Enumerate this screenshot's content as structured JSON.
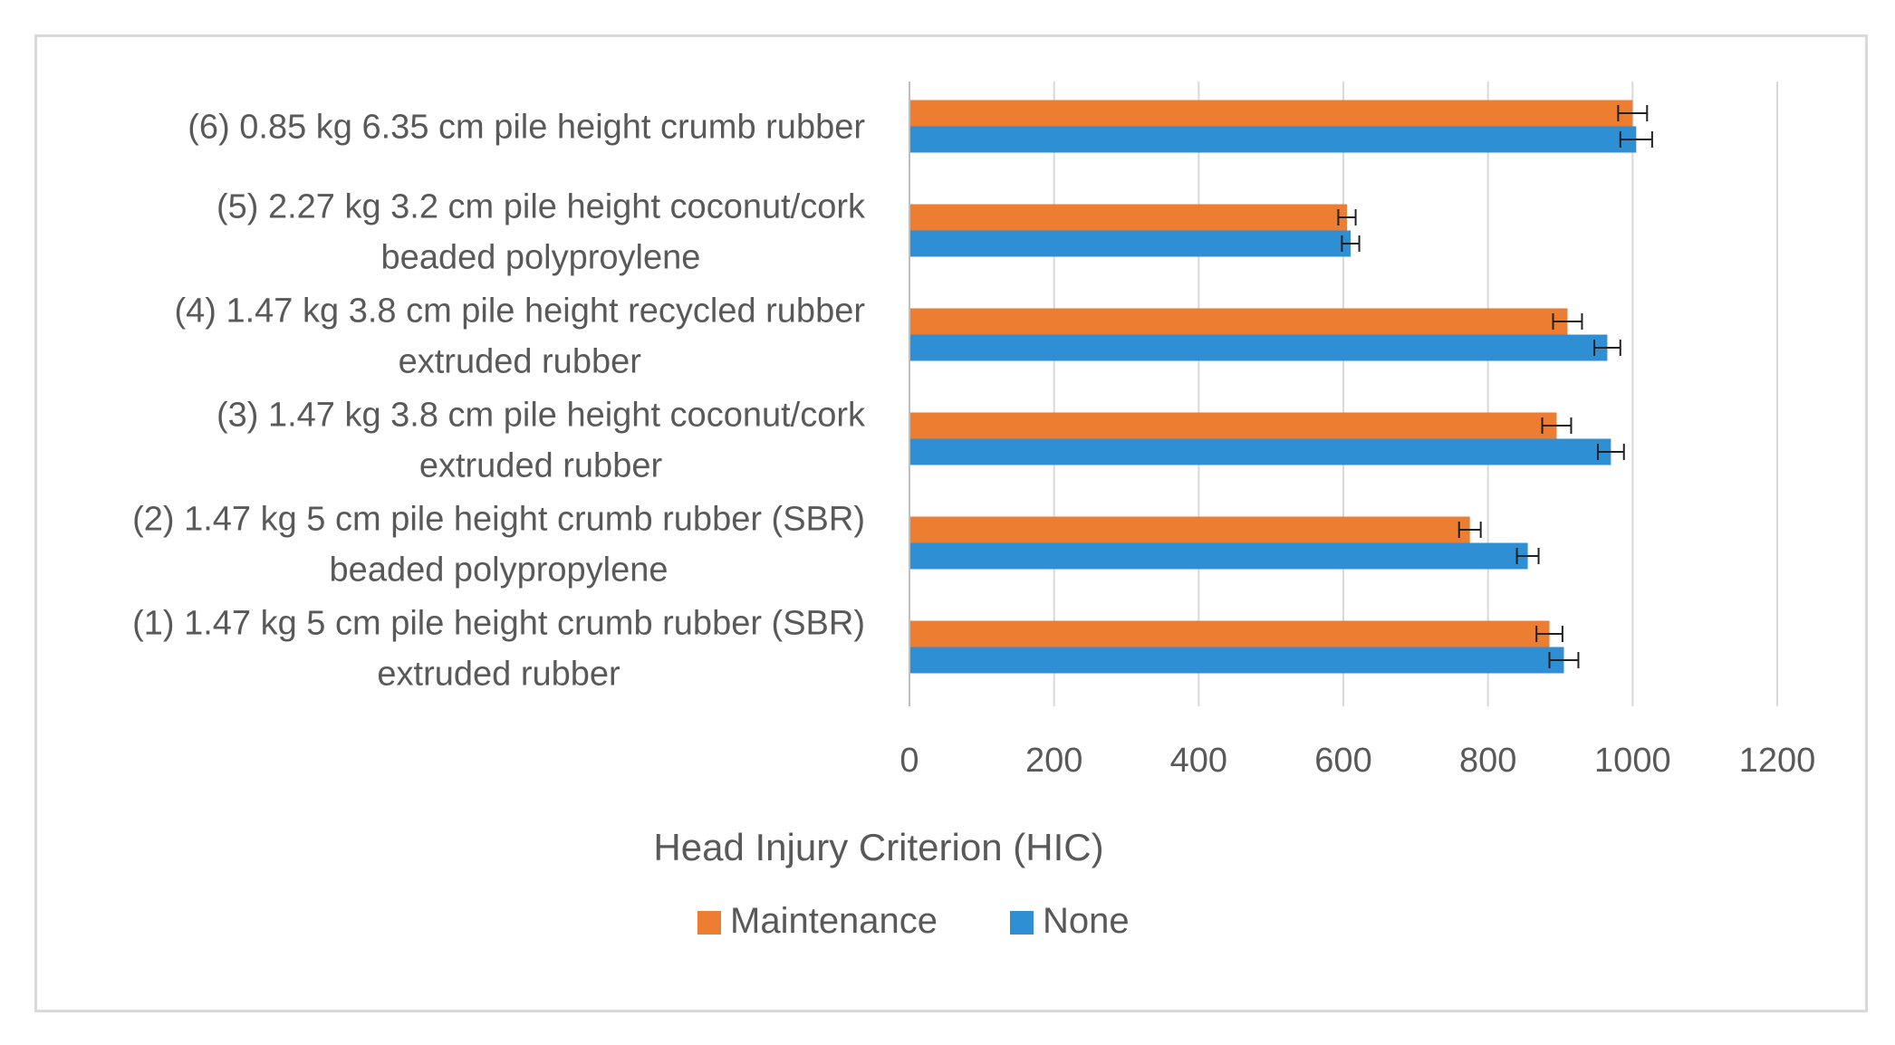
{
  "chart_data": {
    "type": "bar",
    "orientation": "horizontal",
    "categories": [
      [
        "(6) 0.85 kg 6.35 cm pile height crumb rubber"
      ],
      [
        "(5) 2.27 kg 3.2 cm pile height coconut/cork",
        "beaded polyproylene"
      ],
      [
        "(4) 1.47 kg 3.8 cm pile height recycled rubber",
        "extruded rubber"
      ],
      [
        "(3) 1.47 kg 3.8 cm pile height coconut/cork",
        "extruded rubber"
      ],
      [
        "(2) 1.47 kg 5 cm pile height crumb rubber (SBR)",
        "beaded polypropylene"
      ],
      [
        "(1) 1.47 kg 5 cm pile height crumb rubber (SBR)",
        "extruded rubber"
      ]
    ],
    "series": [
      {
        "name": "Maintenance",
        "color": "#ed7d31",
        "values": [
          1000,
          605,
          910,
          895,
          775,
          885
        ],
        "errors": [
          20,
          12,
          20,
          20,
          15,
          18
        ]
      },
      {
        "name": "None",
        "color": "#2e8fd5",
        "values": [
          1005,
          610,
          965,
          970,
          855,
          905
        ],
        "errors": [
          22,
          12,
          18,
          18,
          15,
          20
        ]
      }
    ],
    "xlabel": "Head Injury Criterion  (HIC)",
    "xlim": [
      0,
      1200
    ],
    "xticks": [
      0,
      200,
      400,
      600,
      800,
      1000,
      1200
    ],
    "grid": true,
    "legend_position": "bottom"
  }
}
